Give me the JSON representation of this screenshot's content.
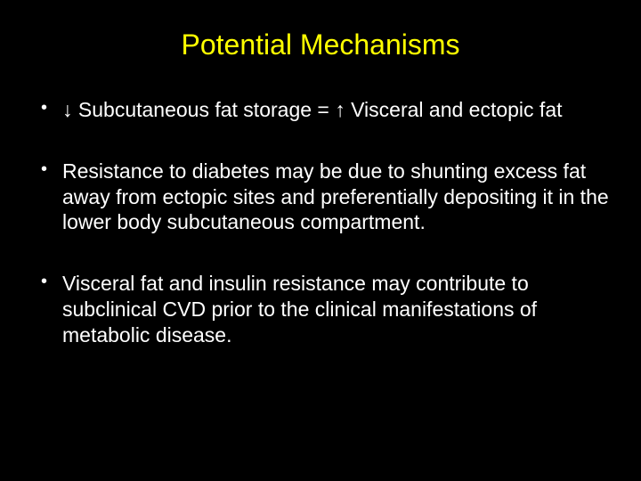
{
  "slide": {
    "title": "Potential Mechanisms",
    "title_color": "#ffff00",
    "title_fontsize": 32,
    "background_color": "#000000",
    "text_color": "#ffffff",
    "body_fontsize": 23,
    "bullets": [
      {
        "text": "↓ Subcutaneous fat storage = ↑ Visceral and ectopic fat"
      },
      {
        "text": " Resistance to diabetes may be due to shunting excess fat away from ectopic sites and preferentially depositing it in the lower body subcutaneous compartment."
      },
      {
        "text": " Visceral fat and insulin resistance may contribute to subclinical CVD prior to the clinical manifestations of metabolic disease."
      }
    ]
  }
}
